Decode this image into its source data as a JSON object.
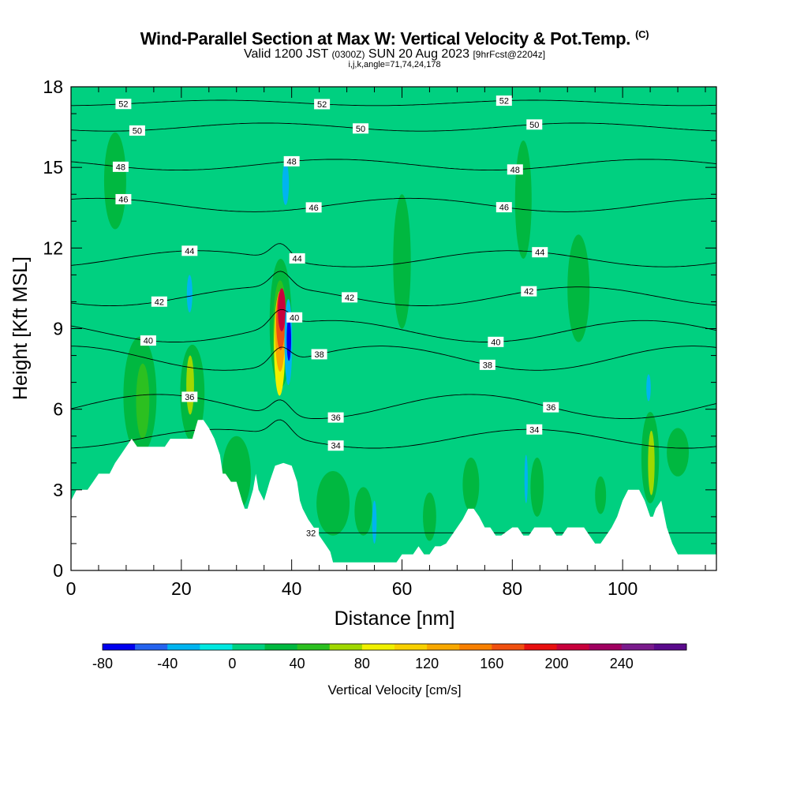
{
  "titles": {
    "main": "Wind-Parallel Section at Max W: Vertical Velocity & Pot.Temp.",
    "main_units": "(C)",
    "valid_prefix": "Valid 1200 JST",
    "valid_utc": "(0300Z)",
    "valid_date": "SUN 20 Aug 2023",
    "forecast": "[9hrFcst@2204z]",
    "indices": "i,j,k,angle=71,74,24,178"
  },
  "chart_data": {
    "type": "heatmap",
    "xlabel": "Distance [nm]",
    "ylabel": "Height [Kft MSL]",
    "xlim": [
      0,
      117
    ],
    "ylim": [
      0,
      18
    ],
    "x_ticks": [
      0,
      20,
      40,
      60,
      80,
      100
    ],
    "y_ticks": [
      0,
      3,
      6,
      9,
      12,
      15,
      18
    ],
    "colorbar": {
      "label": "Vertical Velocity [cm/s]",
      "min": -80,
      "step": 20,
      "tick_labels": [
        "-80",
        "-40",
        "0",
        "40",
        "80",
        "120",
        "160",
        "200",
        "240"
      ],
      "colors": [
        "#0000ee",
        "#2563ee",
        "#00b4f0",
        "#00e8e0",
        "#00d080",
        "#00b840",
        "#2cc020",
        "#a0d800",
        "#f0f000",
        "#f8d000",
        "#f8a800",
        "#f88000",
        "#f05010",
        "#e81010",
        "#c8003c",
        "#a00060",
        "#7a1a8c",
        "#5a0a8c"
      ]
    },
    "background_value": 10,
    "bands": [
      {
        "x0": 0,
        "x1": 3,
        "value": 10
      },
      {
        "x0": 4,
        "x1": 6,
        "value": 0
      },
      {
        "x0": 7,
        "x1": 10,
        "value": 10
      },
      {
        "x0": 11,
        "x1": 14,
        "value": 0
      },
      {
        "x0": 15,
        "x1": 18,
        "value": 0
      },
      {
        "x0": 22,
        "x1": 26,
        "value": 0
      },
      {
        "x0": 27,
        "x1": 30,
        "value": 10
      },
      {
        "x0": 31,
        "x1": 34,
        "value": 0
      },
      {
        "x0": 41,
        "x1": 47,
        "value": 0
      },
      {
        "x0": 49,
        "x1": 51,
        "value": 0
      },
      {
        "x0": 54,
        "x1": 60,
        "value": 0
      },
      {
        "x0": 62,
        "x1": 64,
        "value": 0
      },
      {
        "x0": 67,
        "x1": 70,
        "value": 0
      },
      {
        "x0": 73,
        "x1": 76,
        "value": 0
      },
      {
        "x0": 79,
        "x1": 82,
        "value": 0
      },
      {
        "x0": 86,
        "x1": 90,
        "value": 0
      },
      {
        "x0": 93,
        "x1": 97,
        "value": 0
      },
      {
        "x0": 99,
        "x1": 102,
        "value": 0
      },
      {
        "x0": 108,
        "x1": 112,
        "value": 0
      }
    ],
    "blobs": [
      {
        "x": 12.5,
        "y": 6.5,
        "rx": 3.0,
        "ry": 2.2,
        "value": 30
      },
      {
        "x": 13.0,
        "y": 6.3,
        "rx": 1.2,
        "ry": 1.4,
        "value": 50
      },
      {
        "x": 22.0,
        "y": 6.6,
        "rx": 2.2,
        "ry": 1.8,
        "value": 30
      },
      {
        "x": 21.6,
        "y": 6.9,
        "rx": 0.7,
        "ry": 1.1,
        "value": 70
      },
      {
        "x": 30.0,
        "y": 3.6,
        "rx": 2.6,
        "ry": 1.4,
        "value": 30
      },
      {
        "x": 38.0,
        "y": 9.2,
        "rx": 2.0,
        "ry": 2.4,
        "value": 30
      },
      {
        "x": 37.9,
        "y": 8.8,
        "rx": 1.3,
        "ry": 2.0,
        "value": 50
      },
      {
        "x": 37.8,
        "y": 8.4,
        "rx": 1.0,
        "ry": 1.9,
        "value": 90
      },
      {
        "x": 37.9,
        "y": 8.9,
        "rx": 0.9,
        "ry": 1.5,
        "value": 130
      },
      {
        "x": 38.0,
        "y": 9.3,
        "rx": 0.8,
        "ry": 1.1,
        "value": 170
      },
      {
        "x": 38.2,
        "y": 9.7,
        "rx": 0.7,
        "ry": 0.8,
        "value": 210
      },
      {
        "x": 39.4,
        "y": 8.5,
        "rx": 0.7,
        "ry": 1.6,
        "value": -30
      },
      {
        "x": 39.5,
        "y": 8.6,
        "rx": 0.4,
        "ry": 0.8,
        "value": -70
      },
      {
        "x": 38.9,
        "y": 14.4,
        "rx": 0.6,
        "ry": 0.8,
        "value": -30
      },
      {
        "x": 21.5,
        "y": 10.3,
        "rx": 0.5,
        "ry": 0.7,
        "value": -30
      },
      {
        "x": 47.5,
        "y": 2.5,
        "rx": 3.0,
        "ry": 1.2,
        "value": 30
      },
      {
        "x": 53.0,
        "y": 2.2,
        "rx": 1.6,
        "ry": 0.9,
        "value": 30
      },
      {
        "x": 55.0,
        "y": 1.8,
        "rx": 0.4,
        "ry": 0.8,
        "value": -30
      },
      {
        "x": 65.0,
        "y": 2.0,
        "rx": 1.2,
        "ry": 0.9,
        "value": 30
      },
      {
        "x": 72.5,
        "y": 3.2,
        "rx": 1.5,
        "ry": 1.0,
        "value": 30
      },
      {
        "x": 84.5,
        "y": 3.1,
        "rx": 1.2,
        "ry": 1.1,
        "value": 30
      },
      {
        "x": 82.5,
        "y": 3.4,
        "rx": 0.3,
        "ry": 0.9,
        "value": -30
      },
      {
        "x": 96.0,
        "y": 2.8,
        "rx": 1.0,
        "ry": 0.7,
        "value": 30
      },
      {
        "x": 105.0,
        "y": 4.2,
        "rx": 1.6,
        "ry": 1.7,
        "value": 30
      },
      {
        "x": 105.2,
        "y": 4.0,
        "rx": 0.6,
        "ry": 1.2,
        "value": 70
      },
      {
        "x": 104.7,
        "y": 6.8,
        "rx": 0.4,
        "ry": 0.5,
        "value": -30
      },
      {
        "x": 110.0,
        "y": 4.4,
        "rx": 2.0,
        "ry": 0.9,
        "value": 30
      },
      {
        "x": 82.0,
        "y": 13.8,
        "rx": 1.5,
        "ry": 2.2,
        "value": 30
      },
      {
        "x": 60.0,
        "y": 11.5,
        "rx": 1.6,
        "ry": 2.5,
        "value": 30
      },
      {
        "x": 8.0,
        "y": 14.5,
        "rx": 2.0,
        "ry": 1.8,
        "value": 30
      },
      {
        "x": 92.0,
        "y": 10.5,
        "rx": 2.0,
        "ry": 2.0,
        "value": 30
      }
    ],
    "terrain": [
      [
        0,
        2.6
      ],
      [
        1,
        3.0
      ],
      [
        3,
        3.0
      ],
      [
        4,
        3.3
      ],
      [
        5,
        3.6
      ],
      [
        7,
        3.6
      ],
      [
        8,
        4.0
      ],
      [
        9,
        4.3
      ],
      [
        10,
        4.6
      ],
      [
        11,
        4.9
      ],
      [
        12,
        4.6
      ],
      [
        17,
        4.6
      ],
      [
        18,
        4.9
      ],
      [
        22,
        4.9
      ],
      [
        23,
        5.6
      ],
      [
        24,
        5.6
      ],
      [
        25,
        5.3
      ],
      [
        26,
        4.9
      ],
      [
        27,
        4.3
      ],
      [
        27.5,
        3.6
      ],
      [
        28,
        3.6
      ],
      [
        29,
        3.3
      ],
      [
        30,
        3.3
      ],
      [
        31,
        2.6
      ],
      [
        31.5,
        2.3
      ],
      [
        32,
        2.3
      ],
      [
        33,
        3.0
      ],
      [
        33.5,
        3.6
      ],
      [
        34,
        3.0
      ],
      [
        35,
        2.6
      ],
      [
        36,
        3.3
      ],
      [
        37,
        3.9
      ],
      [
        38.5,
        4.0
      ],
      [
        40,
        3.9
      ],
      [
        40.5,
        3.6
      ],
      [
        41,
        3.3
      ],
      [
        41.5,
        2.6
      ],
      [
        42,
        2.3
      ],
      [
        43,
        1.9
      ],
      [
        44,
        1.6
      ],
      [
        45,
        1.3
      ],
      [
        46,
        1.0
      ],
      [
        47,
        0.7
      ],
      [
        47.5,
        0.3
      ],
      [
        59,
        0.3
      ],
      [
        60,
        0.6
      ],
      [
        62,
        0.6
      ],
      [
        63,
        0.9
      ],
      [
        64,
        0.6
      ],
      [
        65,
        0.6
      ],
      [
        66,
        0.9
      ],
      [
        67,
        0.9
      ],
      [
        68,
        1.0
      ],
      [
        69,
        1.3
      ],
      [
        70,
        1.6
      ],
      [
        71,
        1.9
      ],
      [
        72,
        2.3
      ],
      [
        73,
        2.3
      ],
      [
        74,
        2.0
      ],
      [
        75,
        1.6
      ],
      [
        76,
        1.6
      ],
      [
        77,
        1.3
      ],
      [
        78,
        1.3
      ],
      [
        80,
        1.6
      ],
      [
        81,
        1.6
      ],
      [
        82,
        1.3
      ],
      [
        83,
        1.3
      ],
      [
        84,
        1.6
      ],
      [
        87,
        1.6
      ],
      [
        88,
        1.3
      ],
      [
        89,
        1.3
      ],
      [
        90,
        1.6
      ],
      [
        93,
        1.6
      ],
      [
        94,
        1.3
      ],
      [
        95,
        1.0
      ],
      [
        96,
        1.0
      ],
      [
        97,
        1.3
      ],
      [
        98,
        1.6
      ],
      [
        99,
        2.0
      ],
      [
        100,
        2.6
      ],
      [
        101,
        3.0
      ],
      [
        103,
        3.0
      ],
      [
        104,
        2.6
      ],
      [
        105,
        2.0
      ],
      [
        105.5,
        2.0
      ],
      [
        106,
        2.3
      ],
      [
        107,
        2.6
      ],
      [
        108,
        1.6
      ],
      [
        109,
        1.0
      ],
      [
        110,
        0.6
      ],
      [
        117,
        0.6
      ]
    ],
    "contours": [
      {
        "label": "52",
        "base": 17.4,
        "amp": 0.1,
        "labels_at": [
          9.5,
          45.5,
          78.5
        ]
      },
      {
        "label": "50",
        "base": 16.5,
        "amp": 0.15,
        "labels_at": [
          12,
          52.5,
          84
        ]
      },
      {
        "label": "48",
        "base": 15.1,
        "amp": 0.2,
        "labels_at": [
          9,
          40,
          80.5
        ]
      },
      {
        "label": "46",
        "base": 13.6,
        "amp": 0.25,
        "labels_at": [
          9.5,
          44,
          78.5
        ]
      },
      {
        "label": "44",
        "base": 11.6,
        "amp": 0.3,
        "labels_at": [
          21.5,
          41,
          85
        ]
      },
      {
        "label": "42",
        "base": 10.2,
        "amp": 0.35,
        "labels_at": [
          16,
          50.5,
          83
        ]
      },
      {
        "label": "40",
        "base": 8.9,
        "amp": 0.4,
        "labels_at": [
          14,
          40.5,
          77
        ]
      },
      {
        "label": "38",
        "base": 7.9,
        "amp": 0.45,
        "labels_at": [
          45,
          75.5
        ]
      },
      {
        "label": "36",
        "base": 6.1,
        "amp": 0.45,
        "labels_at": [
          21.5,
          48,
          87
        ]
      },
      {
        "label": "34",
        "base": 4.9,
        "amp": 0.35,
        "labels_at": [
          48,
          84
        ]
      },
      {
        "label": "32",
        "base": 1.4,
        "amp": 0.0,
        "labels_at": [
          43.5
        ]
      }
    ]
  }
}
